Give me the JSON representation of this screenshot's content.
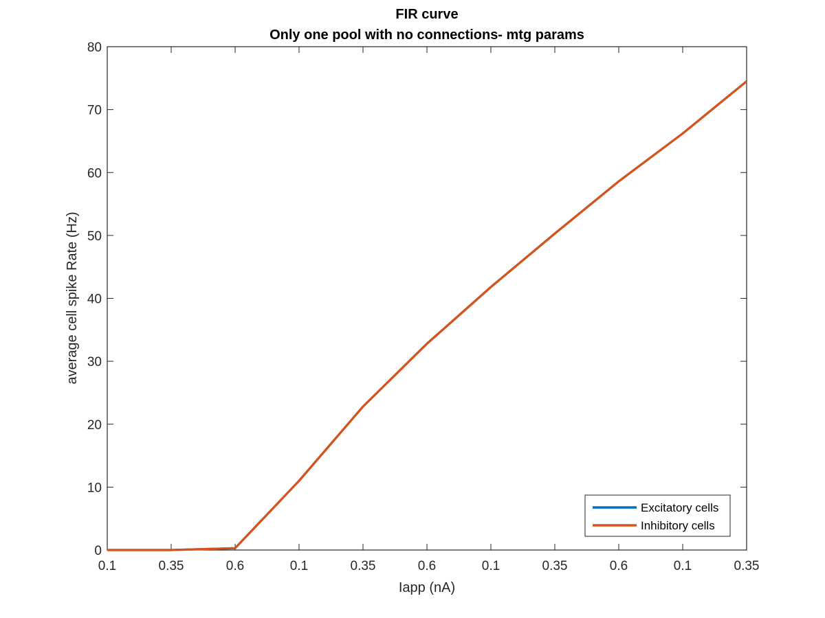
{
  "chart_data": {
    "type": "line",
    "title": "FIR curve",
    "subtitle": "Only one pool with no connections- mtg params",
    "xlabel": "Iapp (nA)",
    "ylabel": "average cell spike Rate (Hz)",
    "categories": [
      "0.1",
      "0.35",
      "0.6",
      "0.1",
      "0.35",
      "0.6",
      "0.1",
      "0.35",
      "0.6",
      "0.1",
      "0.35"
    ],
    "yticks": [
      0,
      10,
      20,
      30,
      40,
      50,
      60,
      70,
      80
    ],
    "ylim": [
      0,
      80
    ],
    "grid": false,
    "legend_position": "bottom-right",
    "series": [
      {
        "name": "Excitatory cells",
        "color": "#0072BD",
        "values": [
          0,
          0,
          0.3,
          11,
          22.8,
          32.8,
          41.8,
          50.3,
          58.6,
          66.2,
          74.5
        ]
      },
      {
        "name": "Inhibitory cells",
        "color": "#D95319",
        "values": [
          0,
          0,
          0.3,
          11,
          22.8,
          32.8,
          41.8,
          50.3,
          58.6,
          66.2,
          74.5
        ]
      }
    ]
  }
}
